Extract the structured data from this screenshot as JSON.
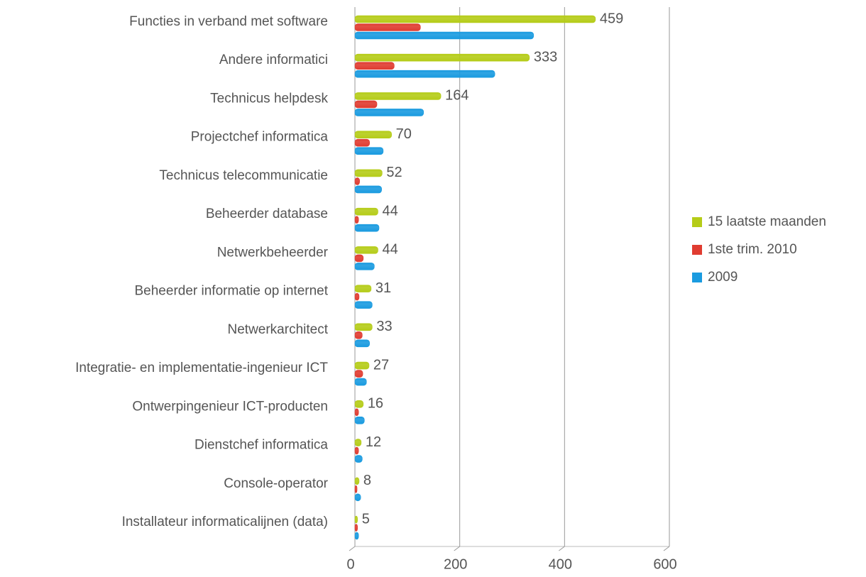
{
  "chart_data": {
    "type": "bar",
    "orientation": "horizontal",
    "categories": [
      "Functies in verband met software",
      "Andere informatici",
      "Technicus helpdesk",
      "Projectchef informatica",
      "Technicus telecommunicatie",
      "Beheerder database",
      "Netwerkbeheerder",
      "Beheerder informatie op internet",
      "Netwerkarchitect",
      "Integratie- en implementatie-ingenieur ICT",
      "Ontwerpingenieur ICT-producten",
      "Dienstchef informatica",
      "Console-operator",
      "Installateur informaticalijnen (data)"
    ],
    "series": [
      {
        "name": "15 laatste maanden",
        "color": "#b5cc18",
        "values": [
          459,
          333,
          164,
          70,
          52,
          44,
          44,
          31,
          33,
          27,
          16,
          12,
          8,
          5
        ],
        "data_labels": true
      },
      {
        "name": "1ste trim. 2010",
        "color": "#e03c31",
        "values": [
          125,
          75,
          42,
          28,
          9,
          7,
          16,
          8,
          14,
          15,
          7,
          7,
          4,
          5
        ]
      },
      {
        "name": "2009",
        "color": "#1a9be0",
        "values": [
          341,
          267,
          131,
          54,
          51,
          46,
          37,
          33,
          28,
          22,
          18,
          14,
          11,
          7
        ]
      }
    ],
    "xlim": [
      0,
      600
    ],
    "xticks": [
      0,
      200,
      400,
      600
    ],
    "grid": true,
    "legend": "right"
  }
}
